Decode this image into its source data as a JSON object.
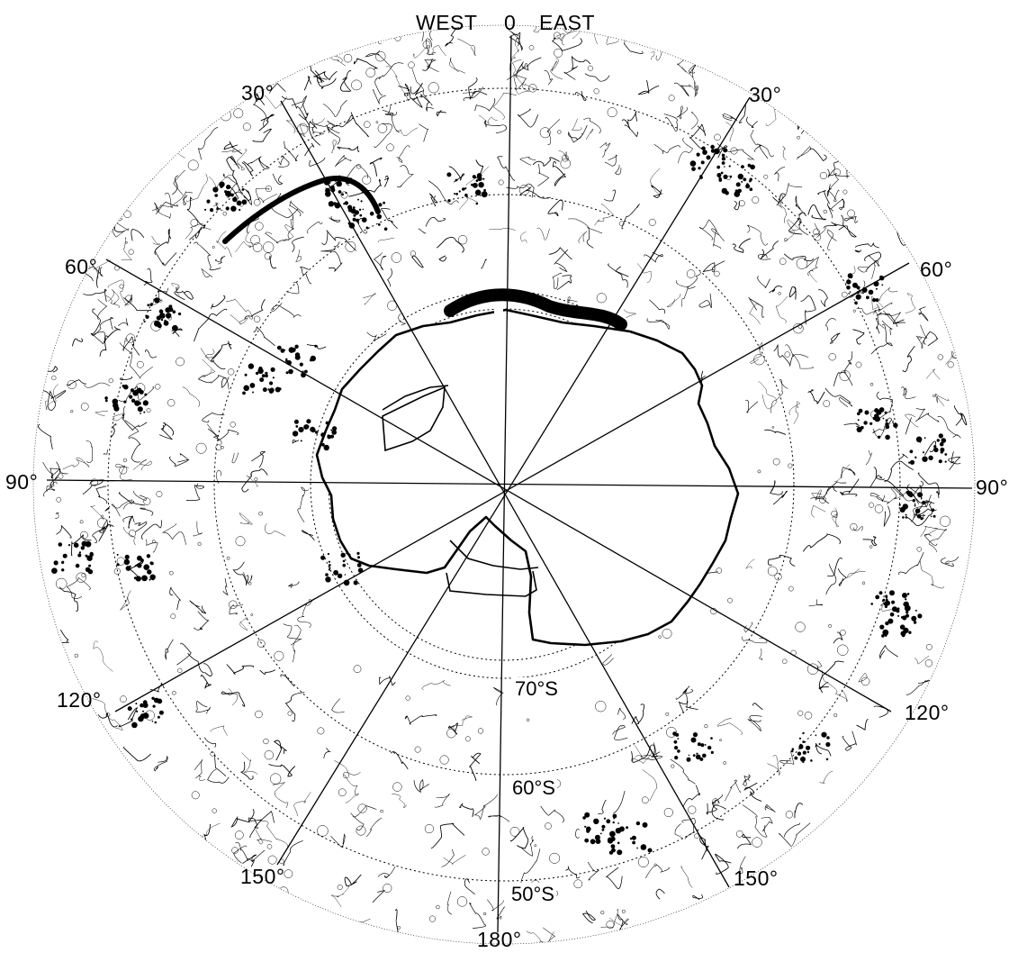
{
  "header": {
    "west": "WEST",
    "zero": "0",
    "east": "EAST"
  },
  "meridian_labels": {
    "w30": "30°",
    "e30": "30°",
    "w60": "60°",
    "e60": "60°",
    "w90": "90°",
    "e90": "90°",
    "w120": "120°",
    "e120": "120°",
    "w150": "150°",
    "e150": "150°",
    "s180": "180°"
  },
  "parallel_labels": {
    "p70": "70°S",
    "p60": "60°S",
    "p50": "50°S"
  },
  "colors": {
    "ink": "#000000",
    "paper": "#ffffff"
  }
}
